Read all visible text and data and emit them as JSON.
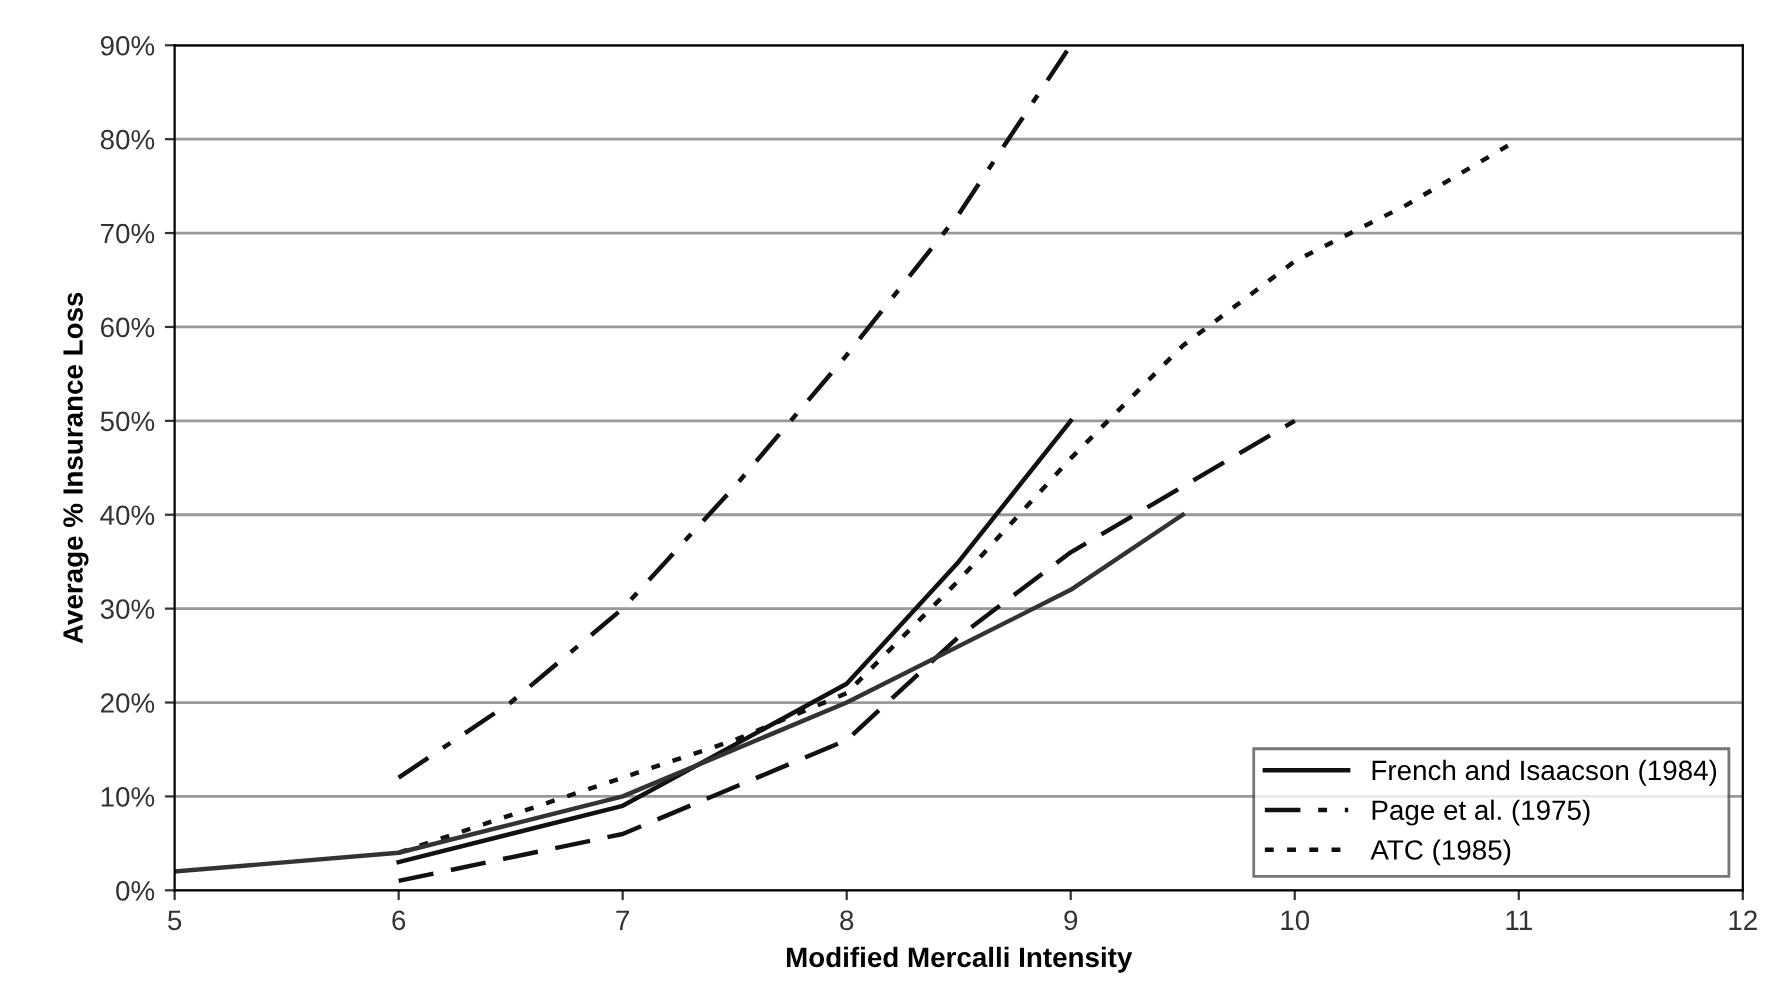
{
  "chart_data": {
    "type": "line",
    "xlabel": "Modified Mercalli Intensity",
    "ylabel": "Average % Insurance Loss",
    "xlim": [
      5,
      12
    ],
    "xticks": [
      5,
      6,
      7,
      8,
      9,
      10,
      11,
      12
    ],
    "ylim": [
      0,
      90
    ],
    "yticks": [
      {
        "value": 0,
        "label": "0%"
      },
      {
        "value": 10,
        "label": "10%"
      },
      {
        "value": 20,
        "label": "20%"
      },
      {
        "value": 30,
        "label": "30%"
      },
      {
        "value": 40,
        "label": "40%"
      },
      {
        "value": 50,
        "label": "50%"
      },
      {
        "value": 60,
        "label": "60%"
      },
      {
        "value": 70,
        "label": "70%"
      },
      {
        "value": 80,
        "label": "80%"
      },
      {
        "value": 90,
        "label": "90%"
      }
    ],
    "grid": "y",
    "legend": "bottom right",
    "marker": "none",
    "series": [
      {
        "name": "French and Isaacson (1984)",
        "color": "#111111",
        "line_style": "solid",
        "x": [
          6,
          7,
          8,
          8.5,
          9
        ],
        "values": [
          3,
          9,
          22,
          35,
          50
        ]
      },
      {
        "name": "Page et al. (1975)",
        "color": "#111111",
        "line_style": "dashdot",
        "x": [
          6,
          6.5,
          7,
          7.5,
          8,
          8.5,
          9
        ],
        "values": [
          12,
          20,
          30,
          43,
          57,
          72,
          90
        ]
      },
      {
        "name": "ATC (1985)",
        "color": "#111111",
        "line_style": "dotted",
        "x": [
          6,
          7,
          7.5,
          8,
          8.5,
          9,
          9.5,
          10,
          10.5,
          11
        ],
        "values": [
          4,
          12,
          16,
          21,
          33,
          46,
          58,
          67,
          73,
          80
        ]
      },
      {
        "color": "#111111",
        "line_style": "dashed",
        "x": [
          6,
          7,
          8,
          8.5,
          9,
          9.5,
          10
        ],
        "values": [
          1,
          6,
          16,
          27,
          36,
          43,
          50
        ]
      },
      {
        "color": "#333333",
        "line_style": "solid",
        "x": [
          5,
          6,
          7,
          8,
          9,
          9.5
        ],
        "values": [
          2,
          4,
          10,
          20,
          32,
          40
        ]
      }
    ]
  }
}
